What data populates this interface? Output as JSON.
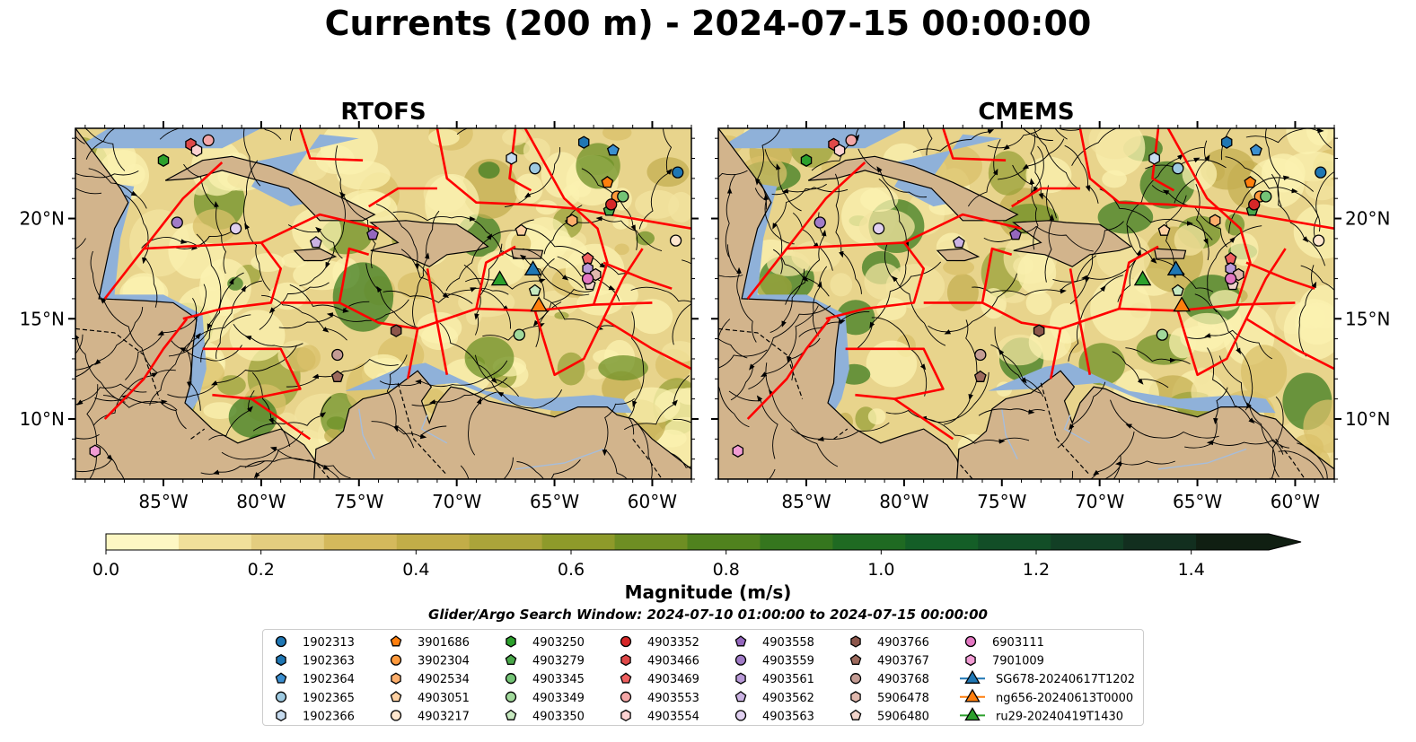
{
  "figure": {
    "title": "Currents (200 m) - 2024-07-15 00:00:00"
  },
  "panels": [
    {
      "title": "RTOFS"
    },
    {
      "title": "CMEMS"
    }
  ],
  "colorbar": {
    "label": "Magnitude (m/s)",
    "ticks": [
      "0.0",
      "0.2",
      "0.4",
      "0.6",
      "0.8",
      "1.0",
      "1.2",
      "1.4"
    ],
    "colors": [
      "#fdf7c3",
      "#f0e09a",
      "#e3cd7f",
      "#d4b95c",
      "#c2ad48",
      "#aba43a",
      "#8e9a2a",
      "#6e8e23",
      "#50821e",
      "#35761e",
      "#1f6a22",
      "#145e27",
      "#124e27",
      "#123f25",
      "#122f1f",
      "#101f12"
    ]
  },
  "search_window": "Glider/Argo Search Window: 2024-07-10 01:00:00 to 2024-07-15 00:00:00",
  "map": {
    "lon_range": [
      -89.5,
      -58
    ],
    "lat_range": [
      7,
      24.5
    ],
    "lon_ticks": [
      "85°W",
      "80°W",
      "75°W",
      "70°W",
      "65°W",
      "60°W"
    ],
    "lat_ticks": [
      "20°N",
      "15°N",
      "10°N"
    ],
    "colors": {
      "land": "#d2b48c",
      "shelf": "#8fb1d9",
      "eez": "#ff0000"
    }
  },
  "chart_data": {
    "type": "scatter",
    "title": "Currents (200 m) - 2024-07-15 00:00:00",
    "x_unit": "longitude (deg E)",
    "y_unit": "latitude (deg N)",
    "xlim": [
      -89.5,
      -58
    ],
    "ylim": [
      7,
      24.5
    ],
    "argo_floats": [
      {
        "id": "1902313",
        "marker": "circle",
        "color": "#1f77b4",
        "lon": -58.7,
        "lat": 22.3
      },
      {
        "id": "1902363",
        "marker": "hexagon",
        "color": "#1f77b4",
        "lon": -63.5,
        "lat": 23.8
      },
      {
        "id": "1902364",
        "marker": "pentagon",
        "color": "#3b8fd0",
        "lon": -62.0,
        "lat": 23.4
      },
      {
        "id": "1902365",
        "marker": "circle",
        "color": "#9ecae1",
        "lon": -66.0,
        "lat": 22.5
      },
      {
        "id": "1902366",
        "marker": "hexagon",
        "color": "#c6dbef",
        "lon": -67.2,
        "lat": 23.0
      },
      {
        "id": "3901686",
        "marker": "pentagon",
        "color": "#ff7f0e",
        "lon": -62.3,
        "lat": 21.8
      },
      {
        "id": "3902304",
        "marker": "circle",
        "color": "#ff9a3c",
        "lon": -61.8,
        "lat": 21.1
      },
      {
        "id": "4902534",
        "marker": "hexagon",
        "color": "#fdae6b",
        "lon": -64.1,
        "lat": 19.9
      },
      {
        "id": "4903051",
        "marker": "pentagon",
        "color": "#fdd0a2",
        "lon": -66.7,
        "lat": 19.4
      },
      {
        "id": "4903217",
        "marker": "circle",
        "color": "#fee6ce",
        "lon": -58.8,
        "lat": 18.9
      },
      {
        "id": "4903250",
        "marker": "hexagon",
        "color": "#2ca02c",
        "lon": -85.0,
        "lat": 22.9
      },
      {
        "id": "4903279",
        "marker": "pentagon",
        "color": "#4aa84a",
        "lon": -62.2,
        "lat": 20.4
      },
      {
        "id": "4903345",
        "marker": "circle",
        "color": "#74c476",
        "lon": -61.5,
        "lat": 21.1
      },
      {
        "id": "4903349",
        "marker": "circle",
        "color": "#a1d99b",
        "lon": -66.8,
        "lat": 14.2
      },
      {
        "id": "4903350",
        "marker": "pentagon",
        "color": "#c7e9c0",
        "lon": -66.0,
        "lat": 16.4
      },
      {
        "id": "4903352",
        "marker": "circle",
        "color": "#d62728",
        "lon": -62.1,
        "lat": 20.7
      },
      {
        "id": "4903466",
        "marker": "hexagon",
        "color": "#e04848",
        "lon": -83.6,
        "lat": 23.7
      },
      {
        "id": "4903469",
        "marker": "pentagon",
        "color": "#f06060",
        "lon": -63.3,
        "lat": 18.0
      },
      {
        "id": "4903553",
        "marker": "circle",
        "color": "#f4a6a6",
        "lon": -82.7,
        "lat": 23.9
      },
      {
        "id": "4903554",
        "marker": "hexagon",
        "color": "#fcd2d2",
        "lon": -83.3,
        "lat": 23.4
      },
      {
        "id": "4903558",
        "marker": "pentagon",
        "color": "#9467bd",
        "lon": -74.3,
        "lat": 19.2
      },
      {
        "id": "4903559",
        "marker": "circle",
        "color": "#a17cc7",
        "lon": -84.3,
        "lat": 19.8
      },
      {
        "id": "4903561",
        "marker": "hexagon",
        "color": "#b99ad8",
        "lon": -63.3,
        "lat": 17.5
      },
      {
        "id": "4903562",
        "marker": "pentagon",
        "color": "#cbb3e3",
        "lon": -77.2,
        "lat": 18.8
      },
      {
        "id": "4903563",
        "marker": "circle",
        "color": "#e0d0f0",
        "lon": -81.3,
        "lat": 19.5
      },
      {
        "id": "4903766",
        "marker": "hexagon",
        "color": "#8c564b",
        "lon": -73.1,
        "lat": 14.4
      },
      {
        "id": "4903767",
        "marker": "pentagon",
        "color": "#9d6a5d",
        "lon": -76.1,
        "lat": 12.1
      },
      {
        "id": "4903768",
        "marker": "circle",
        "color": "#c49c94",
        "lon": -76.1,
        "lat": 13.2
      },
      {
        "id": "5906478",
        "marker": "hexagon",
        "color": "#e0b8ad",
        "lon": -62.9,
        "lat": 17.2
      },
      {
        "id": "5906480",
        "marker": "pentagon",
        "color": "#f2d4cb",
        "lon": -63.2,
        "lat": 16.7
      },
      {
        "id": "6903111",
        "marker": "circle",
        "color": "#e377c2",
        "lon": -63.3,
        "lat": 17.0
      },
      {
        "id": "7901009",
        "marker": "hexagon",
        "color": "#f19cd4",
        "lon": -88.5,
        "lat": 8.4
      }
    ],
    "gliders": [
      {
        "id": "SG678-20240617T1202",
        "marker": "triangle",
        "color": "#1f77b4",
        "lon": -66.1,
        "lat": 17.5
      },
      {
        "id": "ng656-20240613T0000",
        "marker": "triangle",
        "color": "#ff7f0e",
        "lon": -65.8,
        "lat": 15.7
      },
      {
        "id": "ru29-20240419T1430",
        "marker": "triangle",
        "color": "#2ca02c",
        "lon": -67.8,
        "lat": 17.0
      }
    ]
  },
  "legend_columns": [
    [
      "1902313",
      "1902363",
      "1902364",
      "1902365",
      "1902366"
    ],
    [
      "3901686",
      "3902304",
      "4902534",
      "4903051",
      "4903217"
    ],
    [
      "4903250",
      "4903279",
      "4903345",
      "4903349",
      "4903350"
    ],
    [
      "4903352",
      "4903466",
      "4903469",
      "4903553",
      "4903554"
    ],
    [
      "4903558",
      "4903559",
      "4903561",
      "4903562",
      "4903563"
    ],
    [
      "4903766",
      "4903767",
      "4903768",
      "5906478",
      "5906480"
    ],
    [
      "6903111",
      "7901009",
      "SG678-20240617T1202",
      "ng656-20240613T0000",
      "ru29-20240419T1430"
    ]
  ]
}
